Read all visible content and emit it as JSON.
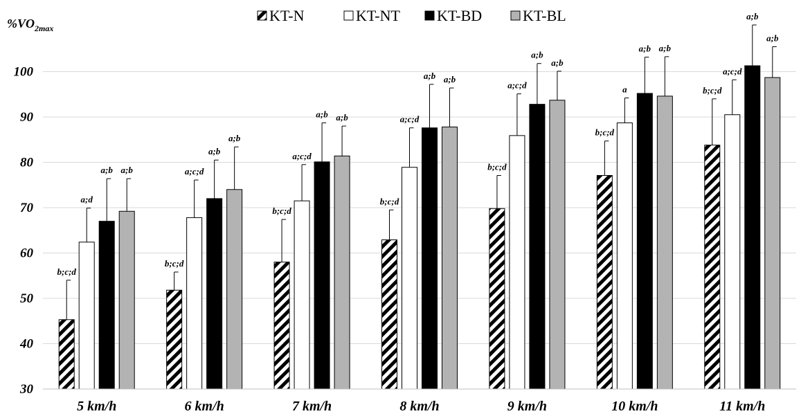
{
  "chart_data": {
    "type": "bar",
    "ylabel_main": "%VO",
    "ylabel_sub": "2max",
    "ylim": [
      30,
      110
    ],
    "yticks": [
      30,
      40,
      50,
      60,
      70,
      80,
      90,
      100
    ],
    "grid": true,
    "legend_position": "top-center",
    "categories": [
      "5 km/h",
      "6 km/h",
      "7 km/h",
      "8 km/h",
      "9 km/h",
      "10 km/h",
      "11 km/h"
    ],
    "series": [
      {
        "name": "KT-N",
        "pattern": "diagonal-stripes",
        "fill": "#000000",
        "values": [
          45.3,
          51.8,
          58.0,
          62.9,
          69.8,
          77.1,
          83.8
        ],
        "errors": [
          8.7,
          4.0,
          9.4,
          6.6,
          7.3,
          7.6,
          10.2
        ],
        "labels": [
          "b;c;d",
          "b;c;d",
          "b;c;d",
          "b;c;d",
          "b;c;d",
          "b;c;d",
          "b;c;d"
        ]
      },
      {
        "name": "KT-NT",
        "fill": "#ffffff",
        "values": [
          62.4,
          67.8,
          71.5,
          78.9,
          85.9,
          88.7,
          90.5
        ],
        "errors": [
          7.5,
          8.3,
          8.0,
          8.7,
          9.2,
          5.5,
          7.7
        ],
        "labels": [
          "a;d",
          "a;c;d",
          "a;c;d",
          "a;c;d",
          "a;c;d",
          "a",
          "a;c;d"
        ]
      },
      {
        "name": "KT-BD",
        "fill": "#000000",
        "values": [
          67.0,
          72.0,
          80.1,
          87.6,
          92.8,
          95.2,
          101.3
        ],
        "errors": [
          9.4,
          8.5,
          8.6,
          9.6,
          9.0,
          8.0,
          9.0
        ],
        "labels": [
          "a;b",
          "a;b",
          "a;b",
          "a;b",
          "a;b",
          "a;b",
          "a;b"
        ]
      },
      {
        "name": "KT-BL",
        "fill": "#b3b3b3",
        "values": [
          69.2,
          74.0,
          81.4,
          87.8,
          93.7,
          94.6,
          98.7
        ],
        "errors": [
          7.2,
          9.4,
          6.6,
          8.6,
          6.4,
          8.7,
          6.8
        ],
        "labels": [
          "a;b",
          "a;b",
          "a;b",
          "a;b",
          "a;b",
          "a;b",
          "a;b"
        ]
      }
    ]
  }
}
